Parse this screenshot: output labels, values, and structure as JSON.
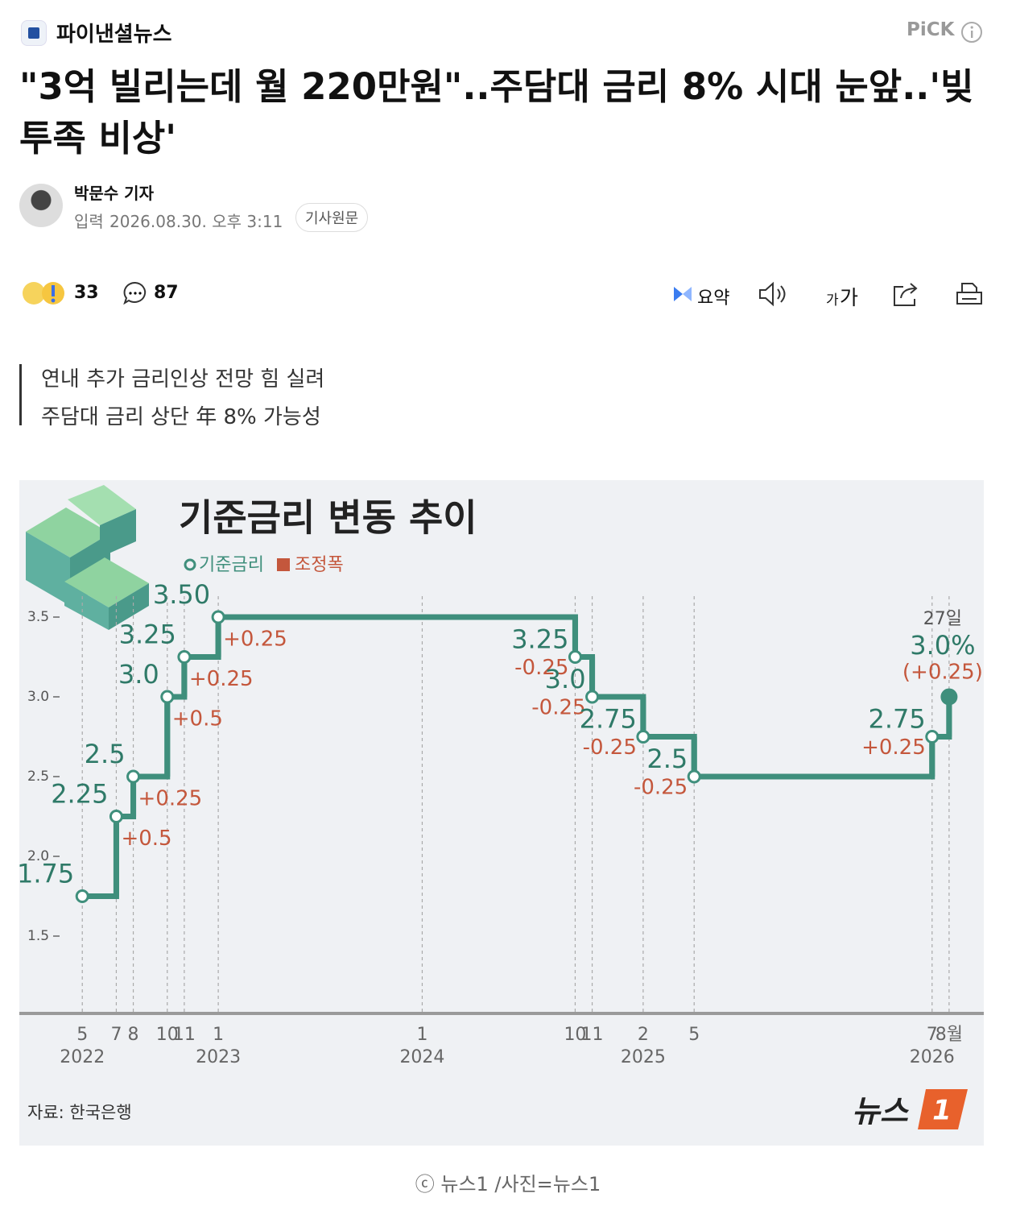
{
  "header": {
    "press": "파이낸셜뉴스",
    "pick": "PiCK"
  },
  "article": {
    "title": "\"3억 빌리는데 월 220만원\"..주담대 금리 8% 시대 눈앞..'빚투족 비상'",
    "reporter": "박문수 기자",
    "date_label": "입력",
    "date": "2026.08.30. 오후 3:11",
    "original_link": "기사원문"
  },
  "actions": {
    "reactions": 33,
    "comments": 87,
    "summary": "요약",
    "font_small": "가",
    "font_large": "가"
  },
  "subtitle": [
    "연내 추가 금리인상 전망 힘 실려",
    "주담대 금리 상단 年 8% 가능성"
  ],
  "chart_data": {
    "type": "step",
    "title": "기준금리 변동 추이",
    "legend": [
      "기준금리",
      "조정폭"
    ],
    "series_color": "#3f8f7c",
    "change_color": "#c4573c",
    "x": [
      "2022-05",
      "2022-07",
      "2022-08",
      "2022-10",
      "2022-11",
      "2023-01",
      "2024-10",
      "2024-11",
      "2025-02",
      "2025-05",
      "2026-07",
      "2026-08"
    ],
    "values": [
      1.75,
      2.25,
      2.5,
      3.0,
      3.25,
      3.5,
      3.25,
      3.0,
      2.75,
      2.5,
      2.75,
      3.0
    ],
    "value_labels": [
      "1.75",
      "2.25",
      "2.5",
      "3.0",
      "3.25",
      "3.50",
      "3.25",
      "3.0",
      "2.75",
      "2.5",
      "2.75",
      "3.0%"
    ],
    "changes": [
      null,
      0.5,
      0.25,
      0.5,
      0.25,
      0.25,
      -0.25,
      -0.25,
      -0.25,
      -0.25,
      0.25,
      0.25
    ],
    "change_labels": [
      null,
      "+0.5",
      "+0.25",
      "+0.5",
      "+0.25",
      "+0.25",
      "-0.25",
      "-0.25",
      "-0.25",
      "-0.25",
      "+0.25",
      "(+0.25)"
    ],
    "annotation": "27일",
    "ylim": [
      1,
      4.3
    ],
    "yticks": [
      1.5,
      {
        "value": 2.0,
        "label": "2.0"
      },
      2.5,
      {
        "value": 3.0,
        "label": "3.0"
      },
      3.5
    ],
    "xlim": [
      "2022-03",
      "2026-09"
    ],
    "xticks": [
      {
        "value": "2022-05",
        "label": "5"
      },
      {
        "value": "2022-07",
        "label": "7"
      },
      {
        "value": "2022-08",
        "label": "8"
      },
      {
        "value": "2022-10",
        "label": "10"
      },
      {
        "value": "2022-11",
        "label": "11"
      },
      {
        "value": "2023-01",
        "label": "1"
      },
      {
        "value": "2024-01",
        "label": "1"
      },
      {
        "value": "2024-10",
        "label": "10"
      },
      {
        "value": "2024-11",
        "label": "11"
      },
      {
        "value": "2025-02",
        "label": "2"
      },
      {
        "value": "2025-05",
        "label": "5"
      },
      {
        "value": "2026-07",
        "label": "7"
      },
      {
        "value": "2026-08",
        "label": "8월"
      }
    ],
    "year_ticks": [
      {
        "value": "2022-05",
        "label": "2022"
      },
      {
        "value": "2023-01",
        "label": "2023"
      },
      {
        "value": "2024-01",
        "label": "2024"
      },
      {
        "value": "2025-02",
        "label": "2025"
      },
      {
        "value": "2026-07",
        "label": "2026"
      }
    ],
    "source": "자료: 한국은행",
    "logo_text": "뉴스",
    "logo_mark": "1"
  },
  "caption": "ⓒ 뉴스1 /사진=뉴스1"
}
